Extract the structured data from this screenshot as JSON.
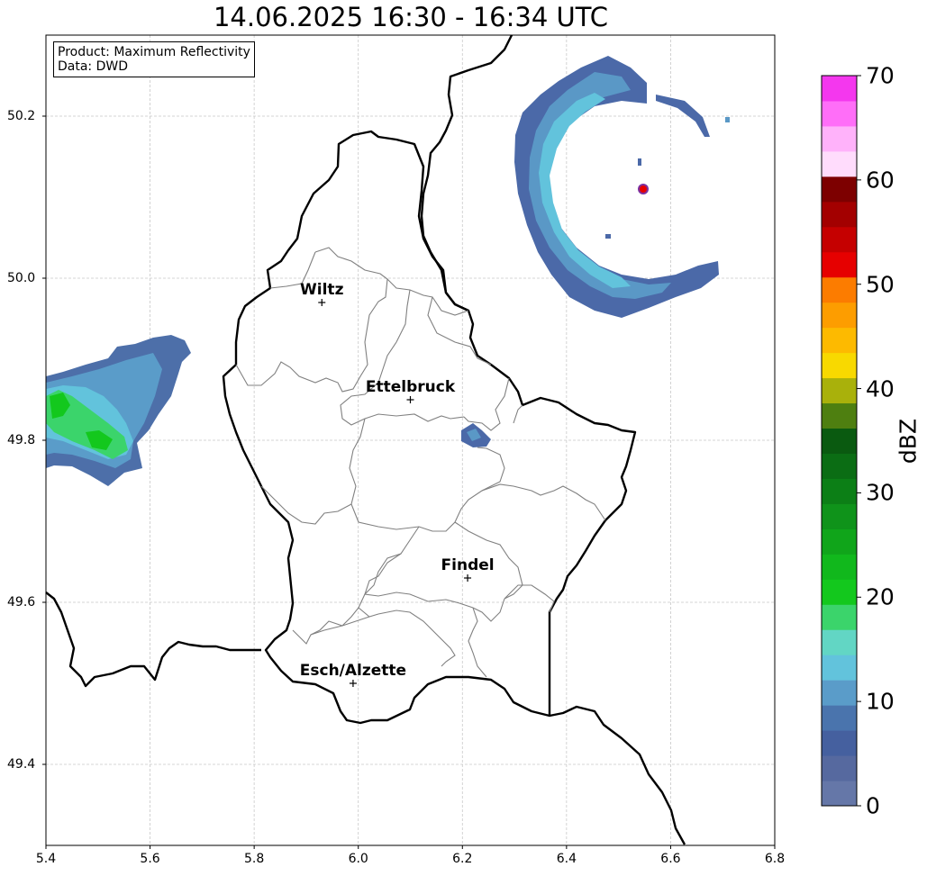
{
  "title": "14.06.2025 16:30 - 16:34 UTC",
  "info": {
    "product_line": "Product: Maximum Reflectivity",
    "data_line": "Data: DWD"
  },
  "axes": {
    "x_ticks": [
      "5.4",
      "5.6",
      "5.8",
      "6.0",
      "6.2",
      "6.4",
      "6.6",
      "6.8"
    ],
    "y_ticks": [
      "50.2",
      "50.0",
      "49.8",
      "49.6",
      "49.4"
    ],
    "x_range": [
      5.4,
      6.8
    ],
    "y_range": [
      49.3,
      50.3
    ],
    "grid": true
  },
  "cities": [
    {
      "name": "Wiltz",
      "lon": 5.93,
      "lat": 49.97
    },
    {
      "name": "Ettelbruck",
      "lon": 6.1,
      "lat": 49.85
    },
    {
      "name": "Findel",
      "lon": 6.21,
      "lat": 49.63
    },
    {
      "name": "Esch/Alzette",
      "lon": 5.99,
      "lat": 49.5
    }
  ],
  "colorbar": {
    "label": "dBZ",
    "ticks": [
      "0",
      "10",
      "20",
      "30",
      "40",
      "50",
      "60",
      "70"
    ],
    "range": [
      0,
      70
    ],
    "colors": [
      "#6577a8",
      "#56699f",
      "#45609f",
      "#4a74ad",
      "#5a9cc9",
      "#62c3dc",
      "#62d6c4",
      "#3bd46b",
      "#13c81d",
      "#11b81c",
      "#10a51a",
      "#0f931a",
      "#0c7f16",
      "#0b6d14",
      "#0a5a10",
      "#4e7f10",
      "#a9b10b",
      "#f8d900",
      "#fdba00",
      "#fd9d00",
      "#fc7c00",
      "#e60000",
      "#c50000",
      "#a30000",
      "#7d0000",
      "#ffdcfc",
      "#ffb2fa",
      "#ff6ef8",
      "#f437ee"
    ]
  },
  "radar_echoes": [
    {
      "name": "west-storm",
      "max_dbz": 22
    },
    {
      "name": "clutter-ring",
      "max_dbz": 16
    },
    {
      "name": "ettelbruck-echo",
      "max_dbz": 8
    },
    {
      "name": "radar-site",
      "max_dbz": 60
    }
  ]
}
